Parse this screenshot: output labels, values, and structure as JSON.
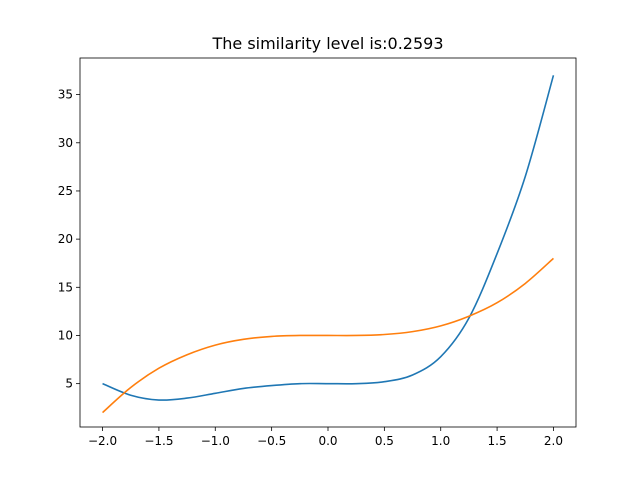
{
  "chart_data": {
    "type": "line",
    "title": "The similarity level is:0.2593",
    "xlabel": "",
    "ylabel": "",
    "xlim": [
      -2.2,
      2.2
    ],
    "ylim": [
      0.5,
      38.8
    ],
    "grid": false,
    "x_ticks": [
      -2.0,
      -1.5,
      -1.0,
      -0.5,
      0.0,
      0.5,
      1.0,
      1.5,
      2.0
    ],
    "x_tick_labels": [
      "−2.0",
      "−1.5",
      "−1.0",
      "−0.5",
      "0.0",
      "0.5",
      "1.0",
      "1.5",
      "2.0"
    ],
    "y_ticks": [
      5,
      10,
      15,
      20,
      25,
      30,
      35
    ],
    "y_tick_labels": [
      "5",
      "10",
      "15",
      "20",
      "25",
      "30",
      "35"
    ],
    "series": [
      {
        "color": "#1f77b4",
        "x": [
          -2.0,
          -1.75,
          -1.5,
          -1.25,
          -1.0,
          -0.75,
          -0.5,
          -0.25,
          0.0,
          0.25,
          0.5,
          0.75,
          1.0,
          1.25,
          1.5,
          1.75,
          2.0
        ],
        "y": [
          5.0,
          3.8,
          3.3,
          3.5,
          4.0,
          4.5,
          4.8,
          5.0,
          5.0,
          5.0,
          5.2,
          5.9,
          7.8,
          11.8,
          18.5,
          26.5,
          37.0
        ]
      },
      {
        "color": "#ff7f0e",
        "x": [
          -2.0,
          -1.75,
          -1.5,
          -1.25,
          -1.0,
          -0.75,
          -0.5,
          -0.25,
          0.0,
          0.25,
          0.5,
          0.75,
          1.0,
          1.25,
          1.5,
          1.75,
          2.0
        ],
        "y": [
          2.0,
          4.6,
          6.6,
          8.0,
          9.0,
          9.6,
          9.9,
          10.0,
          10.0,
          10.0,
          10.1,
          10.4,
          11.0,
          12.0,
          13.4,
          15.4,
          18.0
        ]
      }
    ]
  }
}
